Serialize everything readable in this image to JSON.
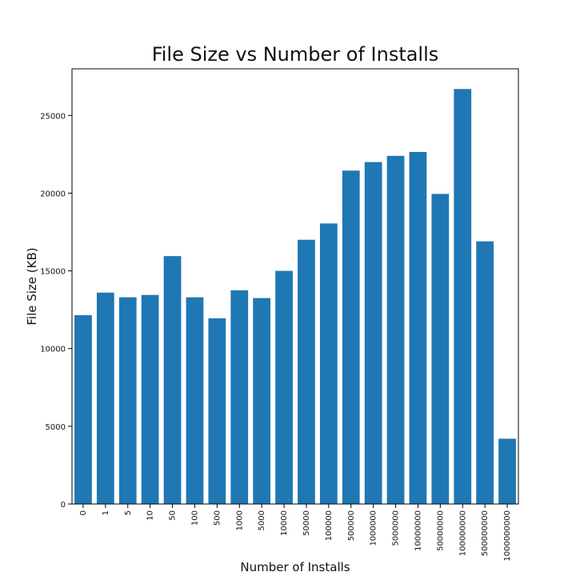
{
  "chart_data": {
    "type": "bar",
    "title": "File Size vs Number of Installs",
    "xlabel": "Number of Installs",
    "ylabel": "File Size (KB)",
    "categories": [
      "0",
      "1",
      "5",
      "10",
      "50",
      "100",
      "500",
      "1000",
      "5000",
      "10000",
      "50000",
      "100000",
      "500000",
      "1000000",
      "5000000",
      "10000000",
      "50000000",
      "100000000",
      "500000000",
      "1000000000"
    ],
    "values": [
      12150,
      13600,
      13300,
      13450,
      15950,
      13300,
      11950,
      13750,
      13250,
      15000,
      17000,
      18050,
      21450,
      22000,
      22400,
      22650,
      19950,
      26700,
      16900,
      4200
    ],
    "ylim": [
      0,
      28000
    ],
    "yticks": [
      0,
      5000,
      10000,
      15000,
      20000,
      25000
    ],
    "colors": {
      "bar": "#1f77b4",
      "axis": "#000000"
    },
    "grid": false,
    "legend": "none"
  }
}
